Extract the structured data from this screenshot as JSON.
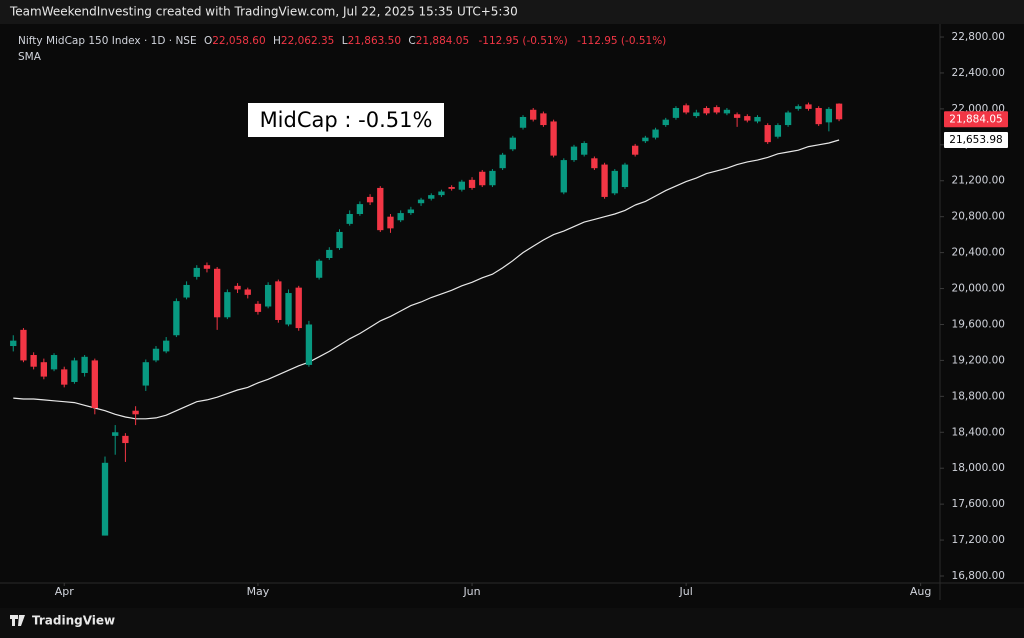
{
  "top_banner": "TeamWeekendInvesting created with TradingView.com, Jul 22, 2025 15:35 UTC+5:30",
  "footer": "TradingView",
  "chart_data": {
    "type": "candlestick",
    "legend": {
      "symbol": "Nifty MidCap 150 Index · 1D · NSE",
      "o_label": "O",
      "o_value": "22,058.60",
      "h_label": "H",
      "h_value": "22,062.35",
      "l_label": "L",
      "l_value": "21,863.50",
      "c_label": "C",
      "c_value": "21,884.05",
      "change": "-112.95 (-0.51%)",
      "change_2": "-112.95 (-0.51%)"
    },
    "annotation": "MidCap : -0.51%",
    "up_color": "#089981",
    "down_color": "#f23645",
    "open": [
      19360,
      19540,
      19260,
      19180,
      19100,
      19100,
      18960,
      19060,
      19200,
      17250,
      18360,
      18360,
      18640,
      18920,
      19200,
      19300,
      19480,
      19900,
      20130,
      20260,
      20220,
      19680,
      20030,
      19990,
      19830,
      19800,
      20080,
      19600,
      20010,
      19150,
      20120,
      20340,
      20450,
      20720,
      20830,
      21020,
      21120,
      20800,
      20760,
      20840,
      20950,
      21000,
      21040,
      21130,
      21100,
      21210,
      21300,
      21150,
      21340,
      21550,
      21790,
      21990,
      21950,
      21860,
      21070,
      21430,
      21490,
      21450,
      21380,
      21060,
      21130,
      21590,
      21640,
      21680,
      21820,
      21900,
      22040,
      21920,
      22010,
      22020,
      21950,
      21940,
      21920,
      21860,
      21820,
      21690,
      21820,
      22000,
      22050,
      22010,
      21850,
      22058.6
    ],
    "high": [
      19480,
      19560,
      19290,
      19220,
      19280,
      19130,
      19230,
      19260,
      19220,
      18130,
      18480,
      18390,
      18690,
      19210,
      19360,
      19460,
      19890,
      20080,
      20260,
      20290,
      20240,
      19990,
      20060,
      20010,
      19860,
      20070,
      20100,
      19990,
      20030,
      19640,
      20330,
      20460,
      20660,
      20870,
      20970,
      21050,
      21140,
      20830,
      20870,
      20910,
      21010,
      21060,
      21100,
      21150,
      21210,
      21240,
      21320,
      21330,
      21510,
      21700,
      21930,
      22010,
      21970,
      21880,
      21450,
      21600,
      21640,
      21470,
      21400,
      21330,
      21400,
      21610,
      21700,
      21790,
      21900,
      22030,
      22060,
      21990,
      22030,
      22040,
      22010,
      21960,
      21940,
      21930,
      21840,
      21840,
      21980,
      22050,
      22070,
      22030,
      22020,
      22062.35
    ],
    "low": [
      19300,
      19180,
      19100,
      18990,
      19080,
      18900,
      18940,
      19020,
      18600,
      17250,
      18150,
      18070,
      18480,
      18860,
      19180,
      19280,
      19460,
      19880,
      20100,
      20180,
      19540,
      19660,
      19950,
      19890,
      19710,
      19780,
      19620,
      19580,
      19530,
      19130,
      20100,
      20320,
      20430,
      20700,
      20810,
      20930,
      20630,
      20620,
      20740,
      20820,
      20920,
      20980,
      21020,
      21090,
      21080,
      21100,
      21130,
      21130,
      21320,
      21530,
      21770,
      21860,
      21800,
      21460,
      21050,
      21410,
      21470,
      21320,
      21000,
      21040,
      21110,
      21470,
      21620,
      21660,
      21800,
      21880,
      21940,
      21900,
      21930,
      21940,
      21930,
      21800,
      21850,
      21840,
      21610,
      21670,
      21800,
      21980,
      21980,
      21810,
      21750,
      21863.5
    ],
    "close": [
      19420,
      19200,
      19130,
      19020,
      19260,
      18930,
      19200,
      19240,
      18670,
      18060,
      18400,
      18280,
      18600,
      19180,
      19330,
      19420,
      19860,
      20040,
      20230,
      20220,
      19680,
      19960,
      19990,
      19930,
      19740,
      20040,
      19650,
      19950,
      19560,
      19600,
      20310,
      20430,
      20630,
      20830,
      20940,
      20960,
      20650,
      20670,
      20840,
      20880,
      20990,
      21040,
      21080,
      21110,
      21190,
      21120,
      21150,
      21310,
      21490,
      21680,
      21910,
      21880,
      21820,
      21480,
      21430,
      21580,
      21620,
      21340,
      21020,
      21310,
      21380,
      21490,
      21680,
      21770,
      21880,
      22010,
      21960,
      21960,
      21950,
      21960,
      21990,
      21900,
      21870,
      21910,
      21630,
      21820,
      21960,
      22030,
      22000,
      21830,
      22000,
      21884.05
    ],
    "sma": {
      "name": "SMA",
      "color": "#e8e8e8",
      "values": [
        18780,
        18770,
        18770,
        18760,
        18750,
        18740,
        18730,
        18700,
        18670,
        18640,
        18600,
        18570,
        18550,
        18550,
        18560,
        18590,
        18640,
        18690,
        18740,
        18760,
        18790,
        18830,
        18870,
        18900,
        18950,
        18990,
        19040,
        19090,
        19140,
        19180,
        19240,
        19300,
        19370,
        19440,
        19500,
        19570,
        19640,
        19690,
        19750,
        19810,
        19850,
        19900,
        19940,
        19980,
        20030,
        20070,
        20120,
        20160,
        20230,
        20310,
        20400,
        20470,
        20540,
        20600,
        20640,
        20690,
        20740,
        20770,
        20800,
        20830,
        20870,
        20930,
        20970,
        21030,
        21090,
        21140,
        21190,
        21230,
        21280,
        21310,
        21340,
        21380,
        21410,
        21430,
        21460,
        21500,
        21520,
        21540,
        21580,
        21600,
        21620,
        21653.98
      ]
    },
    "price_labels": [
      {
        "value": 21884.05,
        "label": "21,884.05"
      },
      {
        "value": 21653.98,
        "label": "21,653.98"
      }
    ],
    "xlim": [
      -1.3,
      90.9
    ],
    "xticks": [
      {
        "value": 5,
        "label": "Apr"
      },
      {
        "value": 24,
        "label": "May"
      },
      {
        "value": 45,
        "label": "Jun"
      },
      {
        "value": 66,
        "label": "Jul"
      },
      {
        "value": 89,
        "label": "Aug"
      }
    ],
    "ylim": [
      16722,
      22945
    ],
    "yticks": [
      {
        "value": 22800,
        "label": "22,800.00"
      },
      {
        "value": 22400,
        "label": "22,400.00"
      },
      {
        "value": 22000,
        "label": "22,000.00"
      },
      {
        "value": 21600,
        "label": "21,600.00"
      },
      {
        "value": 21200,
        "label": "21,200.00"
      },
      {
        "value": 20800,
        "label": "20,800.00"
      },
      {
        "value": 20400,
        "label": "20,400.00"
      },
      {
        "value": 20000,
        "label": "20,000.00"
      },
      {
        "value": 19600,
        "label": "19,600.00"
      },
      {
        "value": 19200,
        "label": "19,200.00"
      },
      {
        "value": 18800,
        "label": "18,800.00"
      },
      {
        "value": 18400,
        "label": "18,400.00"
      },
      {
        "value": 18000,
        "label": "18,000.00"
      },
      {
        "value": 17600,
        "label": "17,600.00"
      },
      {
        "value": 17200,
        "label": "17,200.00"
      },
      {
        "value": 16800,
        "label": "16,800.00"
      }
    ],
    "grid": false
  }
}
